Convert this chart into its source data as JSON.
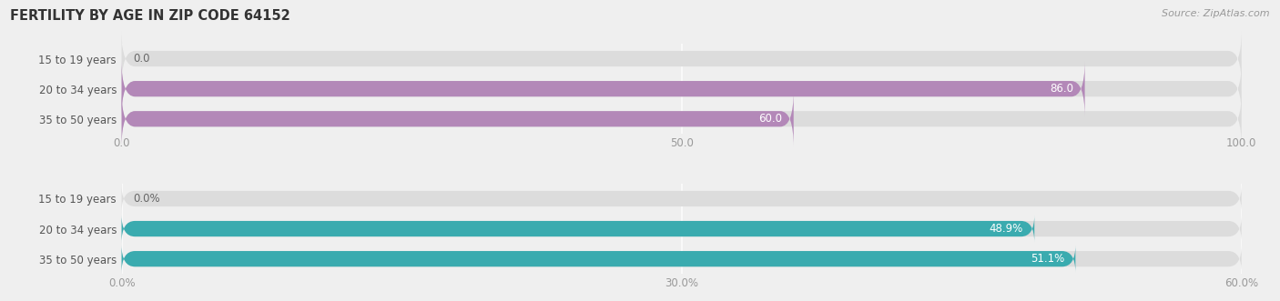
{
  "title": "FERTILITY BY AGE IN ZIP CODE 64152",
  "source": "Source: ZipAtlas.com",
  "background_color": "#efefef",
  "top_chart": {
    "categories": [
      "15 to 19 years",
      "20 to 34 years",
      "35 to 50 years"
    ],
    "values": [
      0.0,
      86.0,
      60.0
    ],
    "xlim": [
      0,
      100
    ],
    "xticks": [
      0.0,
      50.0,
      100.0
    ],
    "xtick_labels": [
      "0.0",
      "50.0",
      "100.0"
    ],
    "bar_color": "#b388b8",
    "bar_bg_color": "#dcdcdc",
    "label_color_inside": "#ffffff",
    "label_color_outside": "#666666",
    "bar_height": 0.52
  },
  "bottom_chart": {
    "categories": [
      "15 to 19 years",
      "20 to 34 years",
      "35 to 50 years"
    ],
    "values": [
      0.0,
      48.9,
      51.1
    ],
    "xlim": [
      0,
      60
    ],
    "xticks": [
      0.0,
      30.0,
      60.0
    ],
    "xtick_labels": [
      "0.0%",
      "30.0%",
      "60.0%"
    ],
    "bar_color": "#3aabaf",
    "bar_bg_color": "#dcdcdc",
    "label_color_inside": "#ffffff",
    "label_color_outside": "#666666",
    "bar_height": 0.52
  },
  "label_fontsize": 8.5,
  "tick_fontsize": 8.5,
  "category_fontsize": 8.5,
  "title_fontsize": 10.5,
  "source_fontsize": 8,
  "title_color": "#333333",
  "tick_color": "#999999",
  "category_color": "#555555"
}
